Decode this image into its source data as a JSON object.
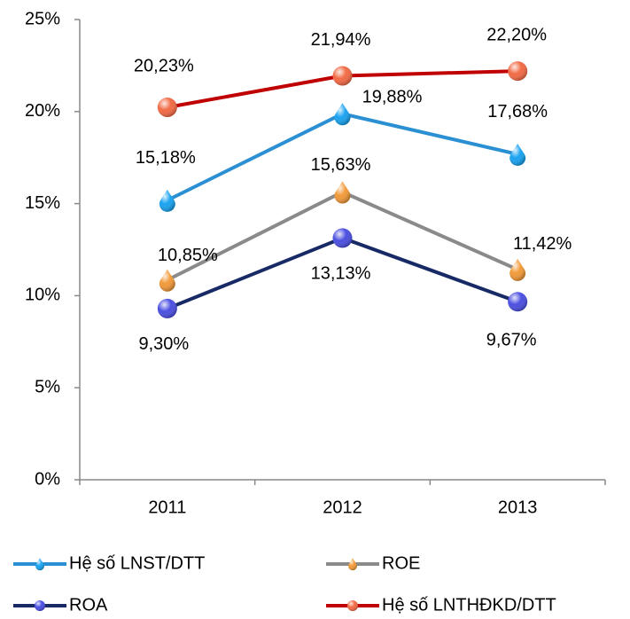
{
  "chart_data": {
    "type": "line",
    "categories": [
      "2011",
      "2012",
      "2013"
    ],
    "series": [
      {
        "name": "Hệ số LNST/DTT",
        "color": "#2b8fd3",
        "marker": "drop",
        "marker_color": "#1aa3f0",
        "values": [
          15.18,
          19.88,
          17.68
        ],
        "value_labels": [
          "15,18%",
          "19,88%",
          "17,68%"
        ]
      },
      {
        "name": "ROE",
        "color": "#8a8a8a",
        "marker": "drop",
        "marker_color": "#f29a3a",
        "values": [
          10.85,
          15.63,
          11.42
        ],
        "value_labels": [
          "10,85%",
          "15,63%",
          "11,42%"
        ]
      },
      {
        "name": "ROA",
        "color": "#172a66",
        "marker": "circle",
        "marker_color": "#4b4fe0",
        "values": [
          9.3,
          13.13,
          9.67
        ],
        "value_labels": [
          "9,30%",
          "13,13%",
          "9,67%"
        ]
      },
      {
        "name": "Hệ số LNTHĐKD/DTT",
        "color": "#c00000",
        "marker": "circle",
        "marker_color": "#f26a45",
        "values": [
          20.23,
          21.94,
          22.2
        ],
        "value_labels": [
          "20,23%",
          "21,94%",
          "22,20%"
        ]
      }
    ],
    "ylim": [
      0,
      25
    ],
    "yticks": [
      {
        "value": 0,
        "label": "0%"
      },
      {
        "value": 5,
        "label": "5%"
      },
      {
        "value": 10,
        "label": "10%"
      },
      {
        "value": 15,
        "label": "15%"
      },
      {
        "value": 20,
        "label": "20%"
      },
      {
        "value": 25,
        "label": "25%"
      }
    ],
    "grid": false
  }
}
